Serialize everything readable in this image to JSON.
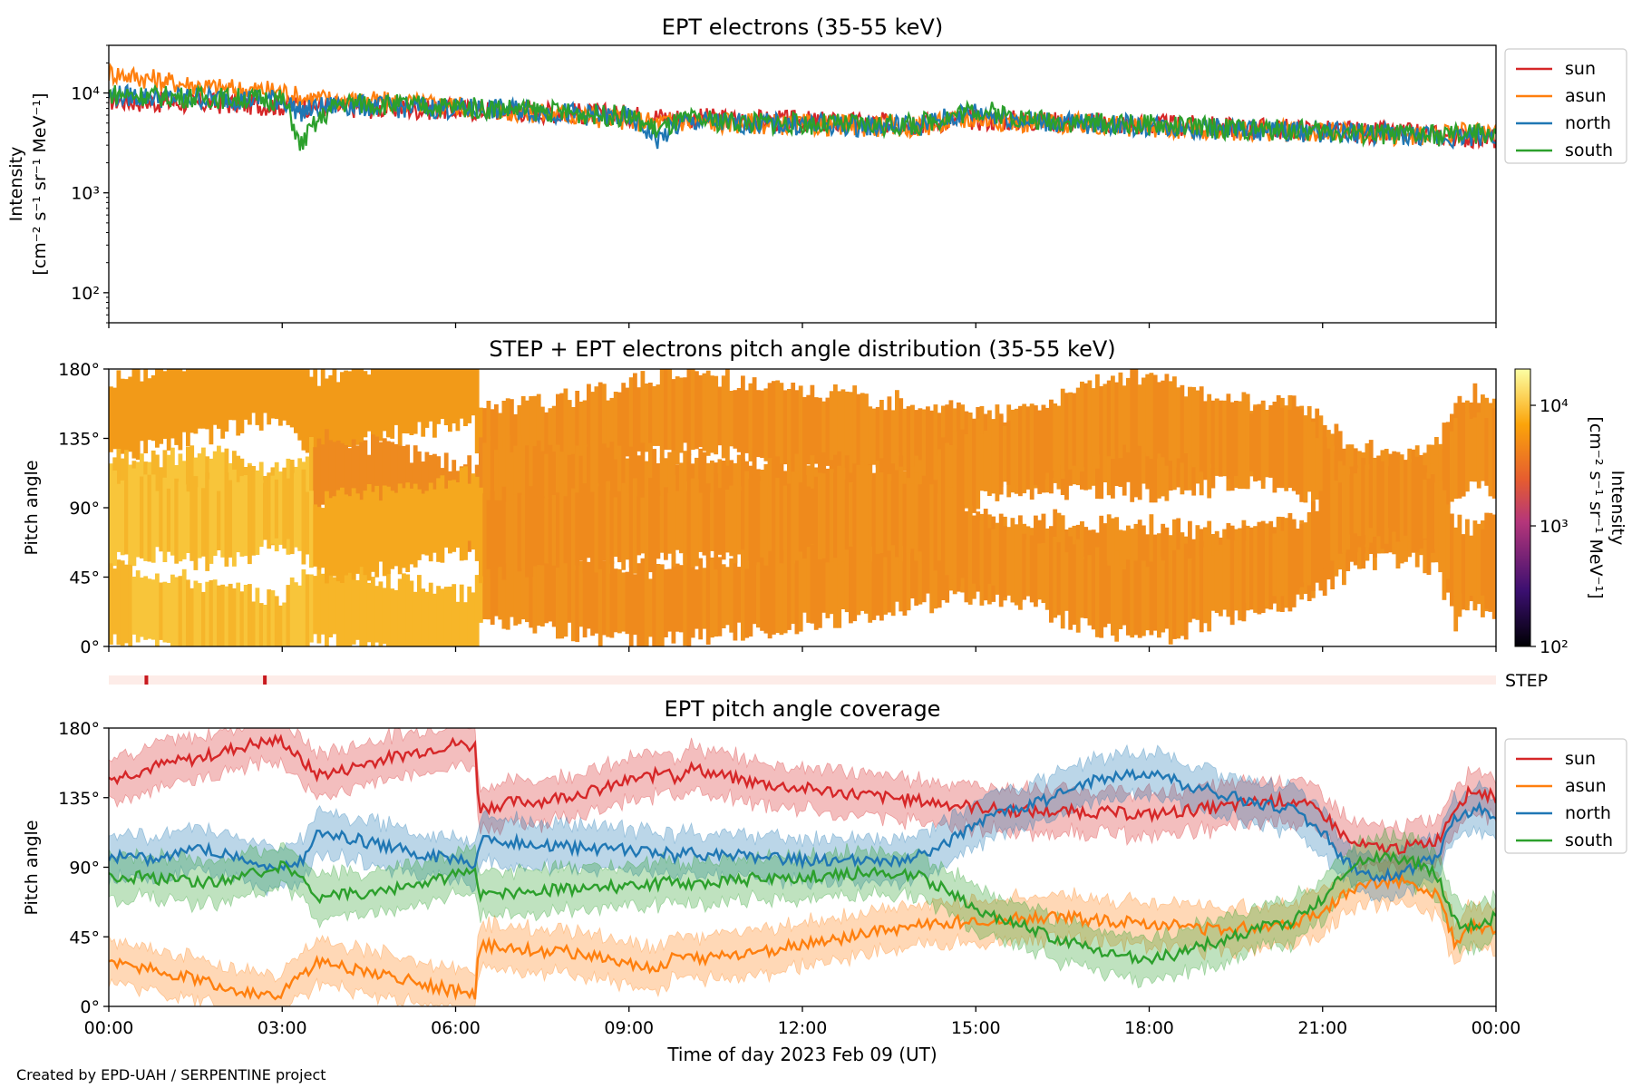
{
  "footer": {
    "credit": "Created by EPD-UAH / SERPENTINE project"
  },
  "colors": {
    "sun": "#d62728",
    "asun": "#ff7f0e",
    "north": "#1f77b4",
    "south": "#2ca02c",
    "step_strip": "#fdece8",
    "step_mark": "#c8191e"
  },
  "chart_data": [
    {
      "type": "line",
      "title": "EPT electrons (35-55 keV)",
      "ylabel": "Intensity",
      "ylabel_units": "[cm⁻² s⁻¹ sr⁻¹ MeV⁻¹]",
      "yscale": "log",
      "ylim": [
        50,
        30000
      ],
      "yticks": [
        {
          "value": 100,
          "label": "10²"
        },
        {
          "value": 1000,
          "label": "10³"
        },
        {
          "value": 10000,
          "label": "10⁴"
        }
      ],
      "xlim": [
        0,
        24
      ],
      "legend": "right",
      "x": [
        0,
        1,
        2,
        3,
        3.3,
        4,
        5,
        6,
        7,
        8,
        9,
        9.5,
        10,
        11,
        12,
        13,
        14,
        15,
        16,
        17,
        18,
        19,
        20,
        21,
        22,
        23,
        24
      ],
      "series": [
        {
          "name": "sun",
          "color_key": "sun",
          "values": [
            8500,
            8000,
            7800,
            7500,
            7400,
            7200,
            7000,
            6800,
            6600,
            6300,
            6000,
            5800,
            5600,
            5400,
            5200,
            5000,
            5000,
            5400,
            5300,
            5000,
            4800,
            4600,
            4400,
            4200,
            4000,
            3800,
            3500
          ]
        },
        {
          "name": "asun",
          "color_key": "asun",
          "values": [
            16000,
            13000,
            11000,
            10500,
            9000,
            8500,
            8000,
            7500,
            6500,
            6000,
            5400,
            5000,
            5200,
            5000,
            4800,
            4700,
            4600,
            5600,
            5000,
            4800,
            4500,
            4300,
            4200,
            4000,
            3900,
            3700,
            4200
          ]
        },
        {
          "name": "north",
          "color_key": "north",
          "values": [
            9500,
            9000,
            8800,
            8500,
            6500,
            7600,
            7200,
            7000,
            6800,
            6200,
            5600,
            3400,
            5200,
            5000,
            4800,
            4700,
            4700,
            6500,
            5200,
            4900,
            4700,
            4400,
            4200,
            4100,
            3900,
            3600,
            3800
          ]
        },
        {
          "name": "south",
          "color_key": "south",
          "values": [
            9800,
            9200,
            8900,
            8600,
            2800,
            8000,
            7600,
            7200,
            6900,
            6300,
            5800,
            4200,
            5400,
            5100,
            4900,
            4800,
            4800,
            6800,
            5400,
            5000,
            4800,
            4500,
            4300,
            4100,
            3900,
            3700,
            4000
          ]
        }
      ]
    },
    {
      "type": "heatmap",
      "title": "STEP + EPT electrons pitch angle distribution (35-55 keV)",
      "ylabel": "Pitch angle",
      "ylim": [
        0,
        180
      ],
      "yticks": [
        "0°",
        "45°",
        "90°",
        "135°",
        "180°"
      ],
      "xlim": [
        0,
        24
      ],
      "colorbar": {
        "label": "Intensity",
        "units": "[cm⁻² s⁻¹ sr⁻¹ MeV⁻¹]",
        "scale": "log",
        "range": [
          100,
          20000
        ],
        "ticks": [
          {
            "value": 100,
            "label": "10²"
          },
          {
            "value": 1000,
            "label": "10³"
          },
          {
            "value": 10000,
            "label": "10⁴"
          }
        ]
      },
      "note": "band intensities plotted along the pitch-angle coverage of each telescope (see EPT pitch angle coverage)"
    },
    {
      "type": "bar",
      "label": "STEP",
      "xlim": [
        0,
        24
      ],
      "markers_x": [
        0.65,
        2.7
      ]
    },
    {
      "type": "area",
      "title": "EPT pitch angle coverage",
      "ylabel": "Pitch angle",
      "xlabel": "Time of day 2023 Feb 09 (UT)",
      "ylim": [
        0,
        180
      ],
      "yticks": [
        "0°",
        "45°",
        "90°",
        "135°",
        "180°"
      ],
      "xlim": [
        0,
        24
      ],
      "xticks": [
        "00:00",
        "03:00",
        "06:00",
        "09:00",
        "12:00",
        "15:00",
        "18:00",
        "21:00",
        "00:00"
      ],
      "legend": "right",
      "x": [
        0,
        0.5,
        1,
        1.5,
        2,
        2.5,
        3,
        3.3,
        3.6,
        4,
        4.5,
        5,
        5.5,
        6,
        6.35,
        6.4,
        7,
        7.5,
        8,
        8.5,
        9,
        9.5,
        9.7,
        9.8,
        10,
        10.5,
        11,
        11.5,
        12,
        12.5,
        13,
        13.5,
        14,
        14.5,
        15,
        15.5,
        16,
        16.5,
        17,
        17.5,
        18,
        18.5,
        19,
        19.5,
        20,
        20.5,
        21,
        21.5,
        22,
        22.5,
        23,
        23.3,
        23.6,
        24
      ],
      "spread": 14,
      "series": [
        {
          "name": "sun",
          "color_key": "sun",
          "values": [
            147,
            152,
            157,
            160,
            165,
            170,
            172,
            160,
            150,
            152,
            158,
            162,
            166,
            170,
            168,
            128,
            132,
            133,
            137,
            140,
            146,
            150,
            156,
            145,
            155,
            150,
            146,
            143,
            141,
            139,
            137,
            135,
            133,
            131,
            129,
            127,
            126,
            126,
            126,
            125,
            124,
            126,
            128,
            130,
            133,
            133,
            125,
            105,
            102,
            103,
            108,
            130,
            140,
            135
          ]
        },
        {
          "name": "asun",
          "color_key": "asun",
          "values": [
            30,
            26,
            22,
            18,
            12,
            8,
            8,
            18,
            28,
            26,
            22,
            18,
            14,
            10,
            8,
            40,
            38,
            36,
            35,
            32,
            28,
            24,
            30,
            32,
            30,
            32,
            34,
            37,
            40,
            43,
            46,
            49,
            52,
            54,
            56,
            57,
            57,
            58,
            56,
            55,
            54,
            52,
            50,
            50,
            52,
            54,
            62,
            75,
            80,
            82,
            72,
            40,
            52,
            48
          ]
        },
        {
          "name": "north",
          "color_key": "north",
          "values": [
            97,
            95,
            97,
            102,
            100,
            93,
            90,
            92,
            112,
            110,
            106,
            103,
            98,
            94,
            92,
            108,
            106,
            104,
            103,
            102,
            101,
            100,
            99,
            97,
            99,
            98,
            97,
            96,
            95,
            95,
            94,
            93,
            97,
            105,
            118,
            125,
            130,
            138,
            145,
            150,
            150,
            145,
            140,
            135,
            130,
            128,
            112,
            90,
            84,
            88,
            98,
            122,
            128,
            125
          ]
        },
        {
          "name": "south",
          "color_key": "south",
          "values": [
            83,
            84,
            82,
            80,
            82,
            86,
            90,
            88,
            70,
            72,
            74,
            76,
            80,
            85,
            88,
            72,
            74,
            75,
            76,
            77,
            78,
            79,
            80,
            82,
            80,
            81,
            82,
            83,
            84,
            85,
            86,
            87,
            84,
            75,
            62,
            55,
            50,
            43,
            36,
            32,
            31,
            34,
            40,
            46,
            52,
            55,
            70,
            92,
            98,
            95,
            84,
            55,
            52,
            58
          ]
        }
      ]
    }
  ]
}
